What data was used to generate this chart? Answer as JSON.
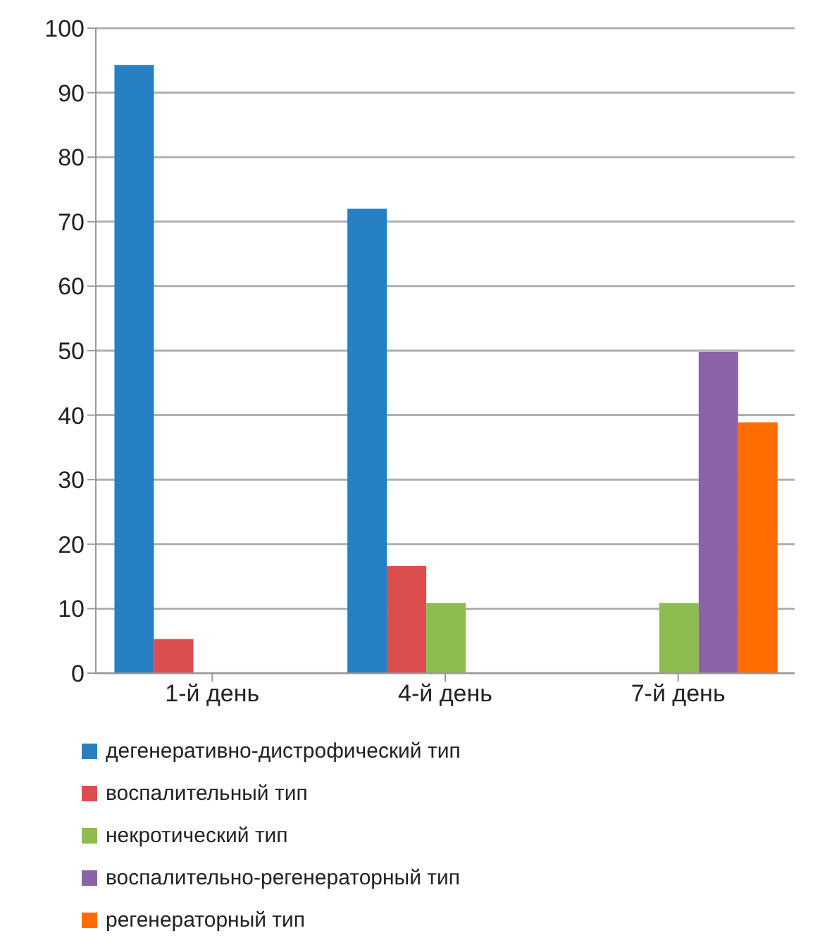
{
  "chart_data": {
    "type": "bar",
    "categories": [
      "1-й день",
      "4-й день",
      "7-й день"
    ],
    "series": [
      {
        "name": "дегенеративно-дистрофический тип",
        "color": "#2580c3",
        "values": [
          94.3,
          72,
          null
        ]
      },
      {
        "name": "воспалительный тип",
        "color": "#dc4e4e",
        "values": [
          5.3,
          16.6,
          null
        ]
      },
      {
        "name": "некротический тип",
        "color": "#8fbc4f",
        "values": [
          null,
          10.9,
          10.9
        ]
      },
      {
        "name": "воспалительно-регенераторный тип",
        "color": "#8a63a8",
        "values": [
          null,
          null,
          49.8
        ]
      },
      {
        "name": "регенераторный тип",
        "color": "#ff6d00",
        "values": [
          null,
          null,
          38.9
        ]
      }
    ],
    "ylim": [
      0,
      100
    ],
    "yticks": [
      0,
      10,
      20,
      30,
      40,
      50,
      60,
      70,
      80,
      90,
      100
    ],
    "grid": "y",
    "legend": "bottom"
  }
}
